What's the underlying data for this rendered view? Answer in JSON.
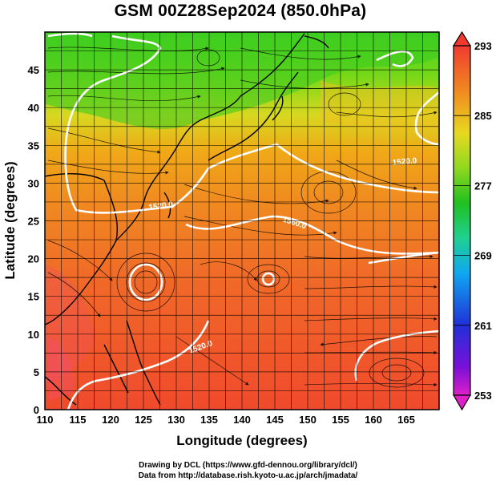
{
  "title": "GSM 00Z28Sep2024 (850.0hPa)",
  "map": {
    "lon_range": [
      110,
      170
    ],
    "lat_range": [
      0,
      50
    ],
    "x_ticks": [
      110,
      115,
      120,
      125,
      130,
      135,
      140,
      145,
      150,
      155,
      160,
      165
    ],
    "y_ticks": [
      0,
      5,
      10,
      15,
      20,
      25,
      30,
      35,
      40,
      45
    ],
    "xlabel": "Longitude (degrees)",
    "ylabel": "Latitude  (degrees)",
    "grid": true,
    "field": "temperature",
    "contour_labels": [
      "1520.0",
      "1520.0",
      "1560.0",
      "1520.0"
    ],
    "vector_field": "streamlines with arrows (wind)"
  },
  "colorbar": {
    "ticks": [
      293,
      285,
      277,
      269,
      261,
      253
    ],
    "range": [
      253,
      293
    ],
    "colors": [
      "#e020d0",
      "#5a1ad0",
      "#1f38e0",
      "#1aa0f0",
      "#20d8a0",
      "#30c030",
      "#7ad020",
      "#d8e020",
      "#f0a020",
      "#f07820",
      "#f04030"
    ]
  },
  "credits": {
    "line1": "Drawing by DCL (https://www.gfd-dennou.org/library/dcl/)",
    "line2": "Data from http://database.rish.kyoto-u.ac.jp/arch/jmadata/"
  }
}
